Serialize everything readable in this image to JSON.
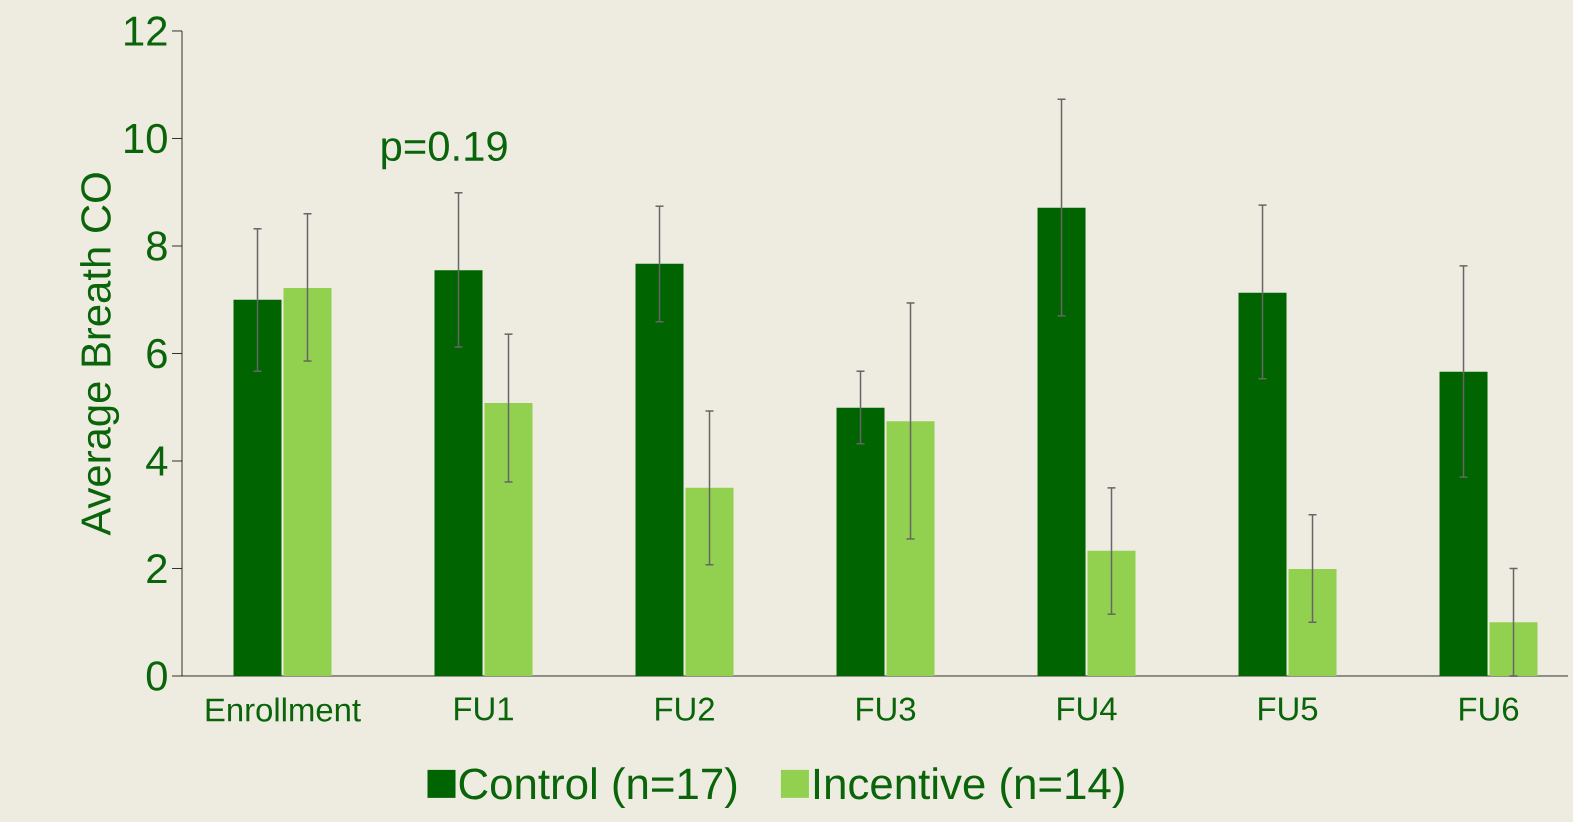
{
  "chart_data": {
    "type": "bar",
    "ylabel": "Average Breath CO",
    "categories": [
      "Enrollment",
      "FU1",
      "FU2",
      "FU3",
      "FU4",
      "FU5",
      "FU6"
    ],
    "series": [
      {
        "name": "Control (n=17)",
        "color": "#006400",
        "values": [
          7.0,
          7.55,
          7.67,
          4.99,
          8.71,
          7.13,
          5.66
        ],
        "errors": [
          [
            5.67,
            8.32
          ],
          [
            6.12,
            8.99
          ],
          [
            6.59,
            8.74
          ],
          [
            4.32,
            5.67
          ],
          [
            6.7,
            10.73
          ],
          [
            5.53,
            8.76
          ],
          [
            3.7,
            7.63
          ]
        ]
      },
      {
        "name": "Incentive (n=14)",
        "color": "#92d050",
        "values": [
          7.22,
          5.08,
          3.5,
          4.74,
          2.33,
          1.99,
          1.0
        ],
        "errors": [
          [
            5.86,
            8.6
          ],
          [
            3.61,
            6.36
          ],
          [
            2.07,
            4.93
          ],
          [
            2.55,
            6.94
          ],
          [
            1.15,
            3.5
          ],
          [
            1.0,
            3.0
          ],
          [
            0.0,
            2.0
          ]
        ]
      }
    ],
    "ylim": [
      0,
      12
    ],
    "yticks": [
      0,
      2,
      4,
      6,
      8,
      10,
      12
    ],
    "annotations": [
      "p=0.19"
    ],
    "legend": "bottom"
  }
}
